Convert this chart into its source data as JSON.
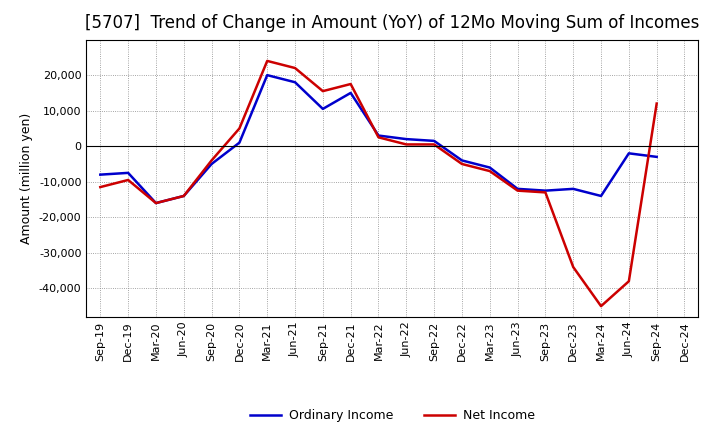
{
  "title": "[5707]  Trend of Change in Amount (YoY) of 12Mo Moving Sum of Incomes",
  "ylabel": "Amount (million yen)",
  "x_labels": [
    "Sep-19",
    "Dec-19",
    "Mar-20",
    "Jun-20",
    "Sep-20",
    "Dec-20",
    "Mar-21",
    "Jun-21",
    "Sep-21",
    "Dec-21",
    "Mar-22",
    "Jun-22",
    "Sep-22",
    "Dec-22",
    "Mar-23",
    "Jun-23",
    "Sep-23",
    "Dec-23",
    "Mar-24",
    "Jun-24",
    "Sep-24",
    "Dec-24"
  ],
  "ordinary_income": [
    -8000,
    -7500,
    -16000,
    -14000,
    -5000,
    1000,
    20000,
    18000,
    10500,
    15000,
    3000,
    2000,
    1500,
    -4000,
    -6000,
    -12000,
    -12500,
    -12000,
    -14000,
    -2000,
    -3000,
    null
  ],
  "net_income": [
    -11500,
    -9500,
    -16000,
    -14000,
    -4000,
    5000,
    24000,
    22000,
    15500,
    17500,
    2500,
    500,
    500,
    -5000,
    -7000,
    -12500,
    -13000,
    -34000,
    -45000,
    -38000,
    12000,
    null
  ],
  "ordinary_income_color": "#0000cc",
  "net_income_color": "#cc0000",
  "background_color": "#ffffff",
  "grid_color": "#888888",
  "title_fontsize": 12,
  "axis_label_fontsize": 9,
  "tick_fontsize": 8,
  "legend_fontsize": 9,
  "ylim": [
    -48000,
    30000
  ],
  "yticks": [
    -40000,
    -30000,
    -20000,
    -10000,
    0,
    10000,
    20000
  ],
  "line_width": 1.8
}
